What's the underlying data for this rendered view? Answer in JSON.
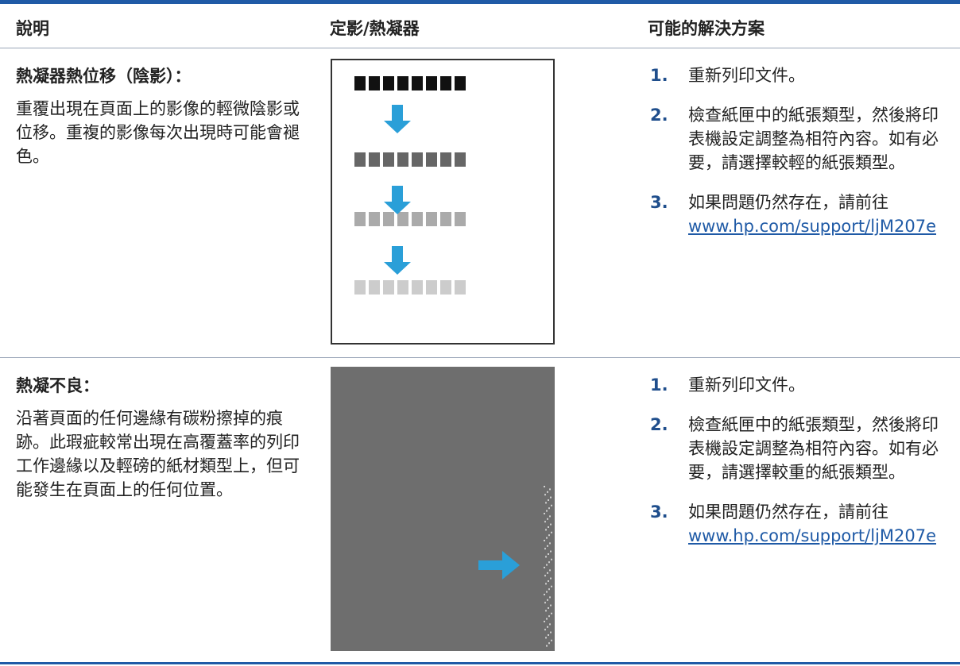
{
  "table": {
    "headers": [
      "說明",
      "定影/熱凝器",
      "可能的解決方案"
    ],
    "rows": [
      {
        "title": "熱凝器熱位移（陰影）：",
        "description": "重覆出現在頁面上的影像的輕微陰影或位移。重複的影像每次出現時可能會褪色。",
        "steps": [
          {
            "number": "1.",
            "text": "重新列印文件。"
          },
          {
            "number": "2.",
            "text": "檢查紙匣中的紙張類型，然後將印表機設定調整為相符內容。如有必要，請選擇較輕的紙張類型。"
          },
          {
            "number": "3.",
            "text": "如果問題仍然存在，請前往",
            "link": "www.hp.com/support/ljM207e"
          }
        ]
      },
      {
        "title": "熱凝不良：",
        "description": "沿著頁面的任何邊緣有碳粉擦掉的痕跡。此瑕疵較常出現在高覆蓋率的列印工作邊緣以及輕磅的紙材類型上，但可能發生在頁面上的任何位置。",
        "steps": [
          {
            "number": "1.",
            "text": "重新列印文件。"
          },
          {
            "number": "2.",
            "text": "檢查紙匣中的紙張類型，然後將印表機設定調整為相符內容。如有必要，請選擇較重的紙張類型。"
          },
          {
            "number": "3.",
            "text": "如果問題仍然存在，請前往",
            "link": "www.hp.com/support/ljM207e"
          }
        ]
      }
    ]
  }
}
